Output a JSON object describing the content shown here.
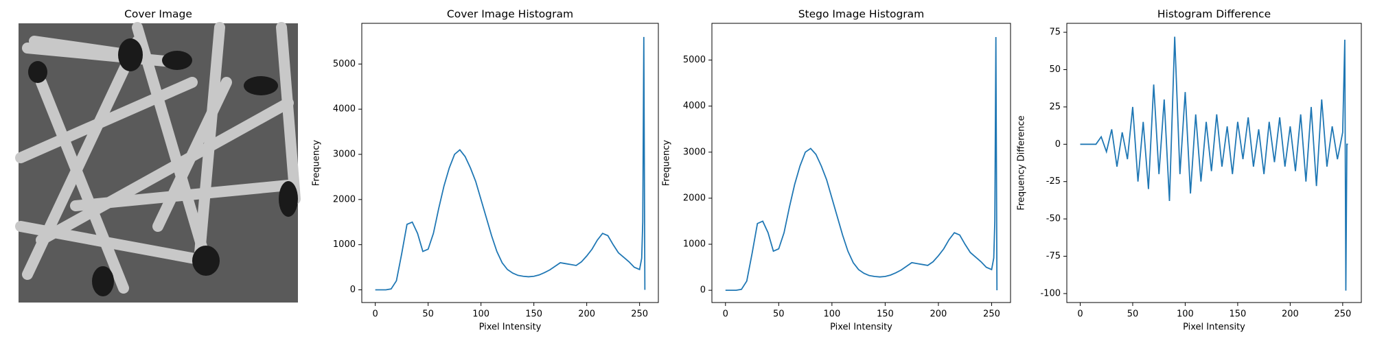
{
  "chart_data": [
    {
      "type": "image",
      "title": "Cover Image"
    },
    {
      "type": "line",
      "title": "Cover Image Histogram",
      "xlabel": "Pixel Intensity",
      "ylabel": "Frequency",
      "color": "#1f77b4",
      "x": [
        0,
        5,
        10,
        15,
        20,
        25,
        30,
        35,
        40,
        45,
        50,
        55,
        60,
        65,
        70,
        75,
        80,
        85,
        90,
        95,
        100,
        105,
        110,
        115,
        120,
        125,
        130,
        135,
        140,
        145,
        150,
        155,
        160,
        165,
        170,
        175,
        180,
        185,
        190,
        195,
        200,
        205,
        210,
        215,
        220,
        225,
        230,
        235,
        240,
        245,
        250,
        252,
        253,
        254,
        255
      ],
      "values": [
        0,
        0,
        0,
        20,
        200,
        800,
        1450,
        1500,
        1250,
        850,
        900,
        1250,
        1800,
        2300,
        2700,
        3000,
        3100,
        2950,
        2700,
        2400,
        2000,
        1600,
        1200,
        850,
        600,
        450,
        370,
        320,
        300,
        290,
        300,
        330,
        380,
        440,
        520,
        600,
        580,
        560,
        540,
        620,
        750,
        900,
        1100,
        1250,
        1200,
        1000,
        820,
        720,
        620,
        500,
        450,
        700,
        1500,
        5600,
        0
      ],
      "xlim": [
        -12.75,
        267.75
      ],
      "ylim": [
        -281,
        5901
      ],
      "xticks": [
        0,
        50,
        100,
        150,
        200,
        250
      ],
      "yticks": [
        0,
        1000,
        2000,
        3000,
        4000,
        5000
      ]
    },
    {
      "type": "line",
      "title": "Stego Image Histogram",
      "xlabel": "Pixel Intensity",
      "ylabel": "Frequency",
      "color": "#1f77b4",
      "x": [
        0,
        5,
        10,
        15,
        20,
        25,
        30,
        35,
        40,
        45,
        50,
        55,
        60,
        65,
        70,
        75,
        80,
        85,
        90,
        95,
        100,
        105,
        110,
        115,
        120,
        125,
        130,
        135,
        140,
        145,
        150,
        155,
        160,
        165,
        170,
        175,
        180,
        185,
        190,
        195,
        200,
        205,
        210,
        215,
        220,
        225,
        230,
        235,
        240,
        245,
        250,
        252,
        253,
        254,
        255
      ],
      "values": [
        0,
        0,
        0,
        20,
        200,
        800,
        1450,
        1500,
        1250,
        850,
        900,
        1250,
        1800,
        2300,
        2700,
        3000,
        3080,
        2950,
        2700,
        2400,
        2000,
        1600,
        1200,
        850,
        600,
        450,
        370,
        320,
        300,
        290,
        300,
        330,
        380,
        440,
        520,
        600,
        580,
        560,
        540,
        620,
        750,
        900,
        1100,
        1250,
        1200,
        1000,
        820,
        720,
        620,
        500,
        450,
        700,
        1500,
        5500,
        0
      ],
      "xlim": [
        -12.75,
        267.75
      ],
      "ylim": [
        -266,
        5798
      ],
      "xticks": [
        0,
        50,
        100,
        150,
        200,
        250
      ],
      "yticks": [
        0,
        1000,
        2000,
        3000,
        4000,
        5000
      ]
    },
    {
      "type": "line",
      "title": "Histogram Difference",
      "xlabel": "Pixel Intensity",
      "ylabel": "Frequency Difference",
      "color": "#1f77b4",
      "x": [
        0,
        5,
        10,
        15,
        20,
        25,
        30,
        35,
        40,
        45,
        50,
        55,
        60,
        65,
        70,
        75,
        80,
        85,
        90,
        95,
        100,
        105,
        110,
        115,
        120,
        125,
        130,
        135,
        140,
        145,
        150,
        155,
        160,
        165,
        170,
        175,
        180,
        185,
        190,
        195,
        200,
        205,
        210,
        215,
        220,
        225,
        230,
        235,
        240,
        245,
        250,
        252,
        253,
        254,
        255
      ],
      "values": [
        0,
        0,
        0,
        0,
        5,
        -5,
        10,
        -15,
        8,
        -10,
        25,
        -25,
        15,
        -30,
        40,
        -20,
        30,
        -38,
        72,
        -20,
        35,
        -33,
        20,
        -25,
        15,
        -18,
        20,
        -15,
        12,
        -20,
        15,
        -10,
        18,
        -15,
        10,
        -20,
        15,
        -12,
        18,
        -15,
        12,
        -18,
        20,
        -25,
        25,
        -28,
        30,
        -15,
        12,
        -10,
        8,
        70,
        -98,
        0,
        0
      ],
      "xlim": [
        -12.75,
        267.75
      ],
      "ylim": [
        -106,
        81
      ],
      "xticks": [
        0,
        50,
        100,
        150,
        200,
        250
      ],
      "yticks": [
        -100,
        -75,
        -50,
        -25,
        0,
        25,
        50,
        75
      ]
    }
  ]
}
